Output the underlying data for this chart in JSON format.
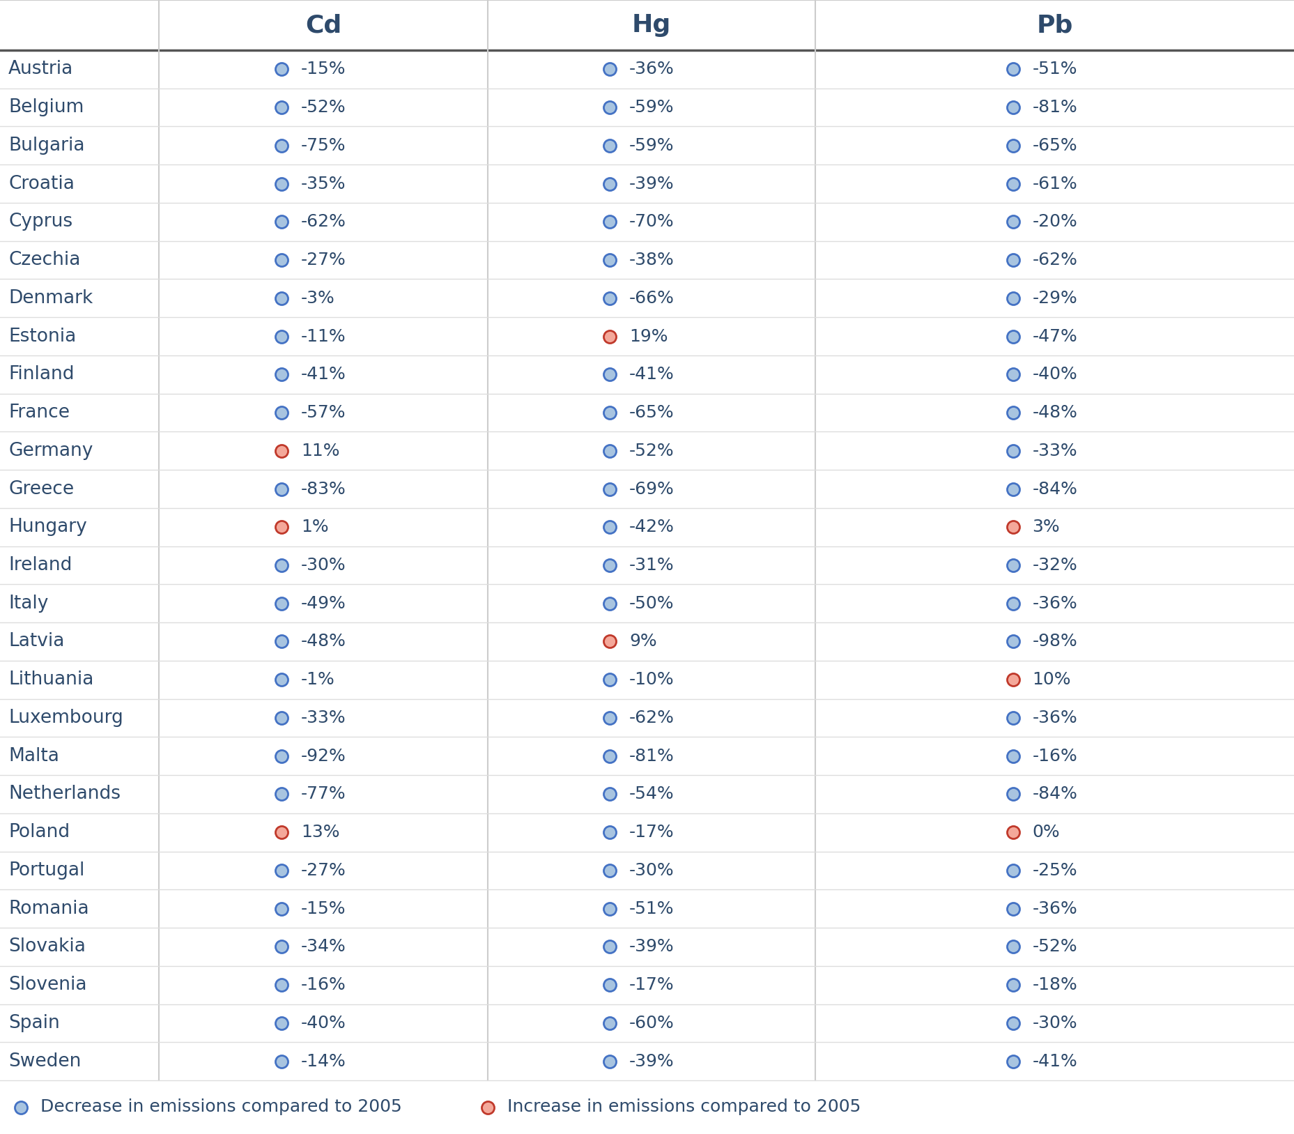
{
  "countries": [
    "Austria",
    "Belgium",
    "Bulgaria",
    "Croatia",
    "Cyprus",
    "Czechia",
    "Denmark",
    "Estonia",
    "Finland",
    "France",
    "Germany",
    "Greece",
    "Hungary",
    "Ireland",
    "Italy",
    "Latvia",
    "Lithuania",
    "Luxembourg",
    "Malta",
    "Netherlands",
    "Poland",
    "Portugal",
    "Romania",
    "Slovakia",
    "Slovenia",
    "Spain",
    "Sweden"
  ],
  "Cd": [
    -15,
    -52,
    -75,
    -35,
    -62,
    -27,
    -3,
    -11,
    -41,
    -57,
    11,
    -83,
    1,
    -30,
    -49,
    -48,
    -1,
    -33,
    -92,
    -77,
    13,
    -27,
    -15,
    -34,
    -16,
    -40,
    -14
  ],
  "Hg": [
    -36,
    -59,
    -59,
    -39,
    -70,
    -38,
    -66,
    19,
    -41,
    -65,
    -52,
    -69,
    -42,
    -31,
    -50,
    9,
    -10,
    -62,
    -81,
    -54,
    -17,
    -30,
    -51,
    -39,
    -17,
    -60,
    -39
  ],
  "Pb": [
    -51,
    -81,
    -65,
    -61,
    -20,
    -62,
    -29,
    -47,
    -40,
    -48,
    -33,
    -84,
    3,
    -32,
    -36,
    -98,
    10,
    -36,
    -16,
    -84,
    0,
    -25,
    -36,
    -52,
    -18,
    -30,
    -41
  ],
  "col_headers": [
    "Cd",
    "Hg",
    "Pb"
  ],
  "blue_edge": "#4472C4",
  "blue_face": "#A8C4E0",
  "red_edge": "#C0392B",
  "red_face": "#F4A89A",
  "text_color": "#2E4A6B",
  "header_color": "#2E4A6B",
  "bg_color": "#FFFFFF",
  "decrease_label": "Decrease in emissions compared to 2005",
  "increase_label": "Increase in emissions compared to 2005",
  "figwidth": 18.57,
  "figheight": 16.27,
  "dpi": 100
}
